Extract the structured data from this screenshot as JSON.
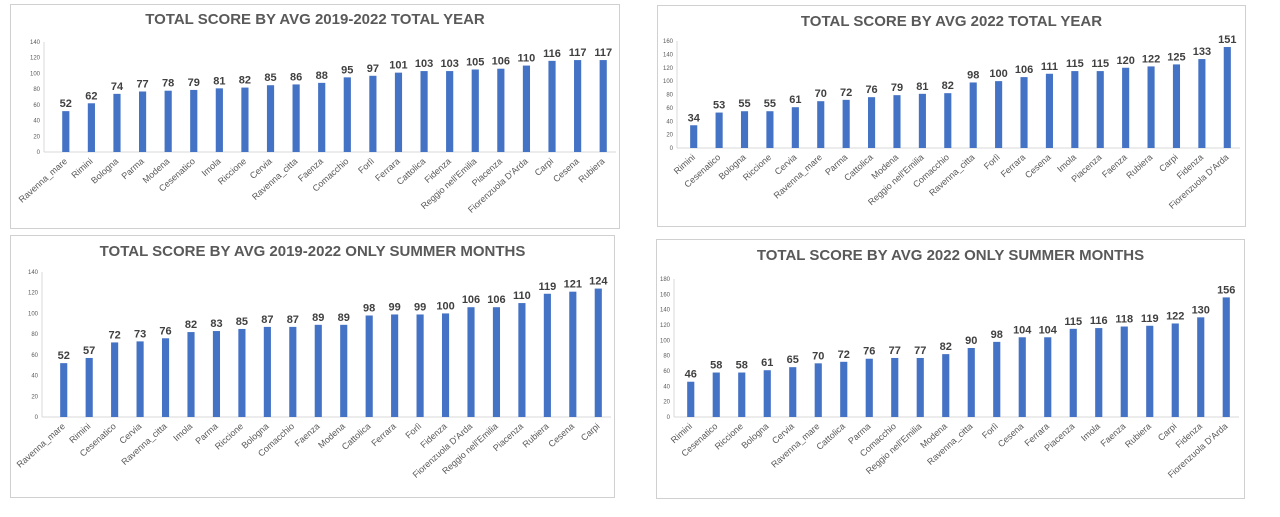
{
  "chart_data": [
    {
      "type": "bar",
      "title": "TOTAL SCORE BY AVG 2019-2022 TOTAL YEAR",
      "categories": [
        "Ravenna_mare",
        "Rimini",
        "Bologna",
        "Parma",
        "Modena",
        "Cesenatico",
        "Imola",
        "Riccione",
        "Cervia",
        "Ravenna_citta",
        "Faenza",
        "Comacchio",
        "Forlì",
        "Ferrara",
        "Cattolica",
        "Fidenza",
        "Reggio nell'Emilia",
        "Piacenza",
        "Fiorenzuola D'Arda",
        "Carpi",
        "Cesena",
        "Rubiera"
      ],
      "values": [
        52,
        62,
        74,
        77,
        78,
        79,
        81,
        82,
        85,
        86,
        88,
        95,
        97,
        101,
        103,
        103,
        105,
        106,
        110,
        116,
        117,
        117
      ],
      "ylim": [
        0,
        140
      ],
      "yticks": [
        0,
        20,
        40,
        60,
        80,
        100,
        120,
        140
      ],
      "grid": false,
      "legend": "none",
      "colors": {
        "bar": "#4472C4"
      }
    },
    {
      "type": "bar",
      "title": "TOTAL SCORE BY AVG 2022 TOTAL YEAR",
      "categories": [
        "Rimini",
        "Cesenatico",
        "Bologna",
        "Riccione",
        "Cervia",
        "Ravenna_mare",
        "Parma",
        "Cattolica",
        "Modena",
        "Reggio nell'Emilia",
        "Comacchio",
        "Ravenna_citta",
        "Forlì",
        "Ferrara",
        "Cesena",
        "Imola",
        "Piacenza",
        "Faenza",
        "Rubiera",
        "Carpi",
        "Fidenza",
        "Fiorenzuola D'Arda"
      ],
      "values": [
        34,
        53,
        55,
        55,
        61,
        70,
        72,
        76,
        79,
        81,
        82,
        98,
        100,
        106,
        111,
        115,
        115,
        120,
        122,
        125,
        133,
        151
      ],
      "ylim": [
        0,
        160
      ],
      "yticks": [
        0,
        20,
        40,
        60,
        80,
        100,
        120,
        140,
        160
      ],
      "grid": false,
      "legend": "none",
      "colors": {
        "bar": "#4472C4"
      }
    },
    {
      "type": "bar",
      "title": "TOTAL SCORE BY AVG 2019-2022 ONLY SUMMER MONTHS",
      "categories": [
        "Ravenna_mare",
        "Rimini",
        "Cesenatico",
        "Cervia",
        "Ravenna_citta",
        "Imola",
        "Parma",
        "Riccione",
        "Bologna",
        "Comacchio",
        "Faenza",
        "Modena",
        "Cattolica",
        "Ferrara",
        "Forlì",
        "Fidenza",
        "Fiorenzuola D'Arda",
        "Reggio nell'Emilia",
        "Piacenza",
        "Rubiera",
        "Cesena",
        "Carpi"
      ],
      "values": [
        52,
        57,
        72,
        73,
        76,
        82,
        83,
        85,
        87,
        87,
        89,
        89,
        98,
        99,
        99,
        100,
        106,
        106,
        110,
        119,
        121,
        124
      ],
      "ylim": [
        0,
        140
      ],
      "yticks": [
        0,
        20,
        40,
        60,
        80,
        100,
        120,
        140
      ],
      "grid": false,
      "legend": "none",
      "colors": {
        "bar": "#4472C4"
      }
    },
    {
      "type": "bar",
      "title": "TOTAL SCORE BY AVG 2022 ONLY SUMMER MONTHS",
      "categories": [
        "Rimini",
        "Cesenatico",
        "Riccione",
        "Bologna",
        "Cervia",
        "Ravenna_mare",
        "Cattolica",
        "Parma",
        "Comacchio",
        "Reggio nell'Emilia",
        "Modena",
        "Ravenna_citta",
        "Forlì",
        "Cesena",
        "Ferrara",
        "Piacenza",
        "Imola",
        "Faenza",
        "Rubiera",
        "Carpi",
        "Fidenza",
        "Fiorenzuola D'Arda"
      ],
      "values": [
        46,
        58,
        58,
        61,
        65,
        70,
        72,
        76,
        77,
        77,
        82,
        90,
        98,
        104,
        104,
        115,
        116,
        118,
        119,
        122,
        130,
        156
      ],
      "ylim": [
        0,
        180
      ],
      "yticks": [
        0,
        20,
        40,
        60,
        80,
        100,
        120,
        140,
        160,
        180
      ],
      "grid": false,
      "legend": "none",
      "colors": {
        "bar": "#4472C4"
      }
    }
  ]
}
